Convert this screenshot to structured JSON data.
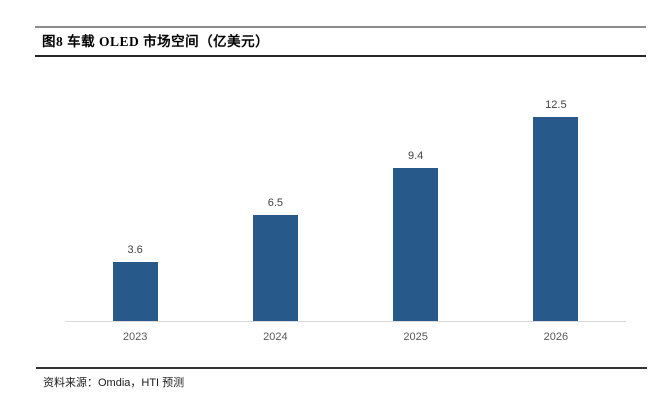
{
  "header": {
    "title": "图8  车载 OLED 市场空间（亿美元）"
  },
  "footer": {
    "label": "资料来源：",
    "value": "Omdia，HTI 预测"
  },
  "chart_data": {
    "type": "bar",
    "categories": [
      "2023",
      "2024",
      "2025",
      "2026"
    ],
    "values": [
      3.6,
      6.5,
      9.4,
      12.5
    ],
    "title": "图8 车载 OLED 市场空间（亿美元）",
    "xlabel": "",
    "ylabel": "",
    "ylim": [
      0,
      12.5
    ],
    "y_axis_visible": false,
    "grid": false,
    "legend": false,
    "data_labels": true,
    "colors": {
      "bar": "#275a8b",
      "value_label": "#404040",
      "axis_label": "#595959",
      "baseline": "#d9d9d9"
    }
  }
}
